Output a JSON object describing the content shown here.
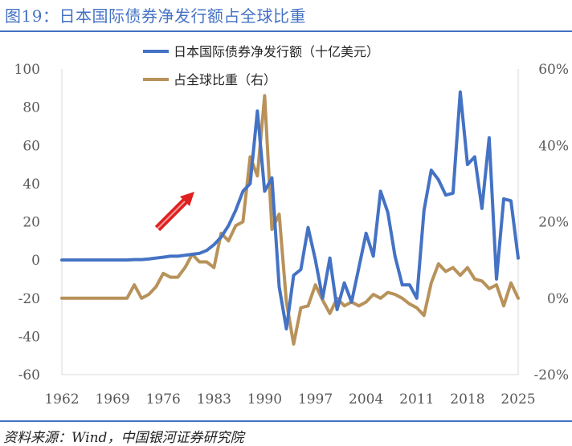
{
  "header": {
    "title": "图19：日本国际债券净发行额占全球比重"
  },
  "footer": {
    "source": "资料来源：Wind，中国银河证券研究院"
  },
  "colors": {
    "primary_series": "#4472c4",
    "secondary_series": "#b8925a",
    "arrow": "#e02020",
    "accent": "#4472c4"
  },
  "chart_data": {
    "type": "line",
    "title": "图19：日本国际债券净发行额占全球比重",
    "xticks": [
      "1962",
      "1969",
      "1976",
      "1983",
      "1990",
      "1997",
      "2004",
      "2011",
      "2018",
      "2025"
    ],
    "x_range": [
      1962,
      2025
    ],
    "y_left": {
      "range": [
        -60,
        100
      ],
      "ticks": [
        "100",
        "80",
        "60",
        "40",
        "20",
        "0",
        "-20",
        "-40",
        "-60"
      ]
    },
    "y_right": {
      "range": [
        -20,
        60
      ],
      "ticks": [
        "60%",
        "40%",
        "20%",
        "0%",
        "-20%"
      ]
    },
    "legend_position": "top",
    "grid": false,
    "annotation": "red-arrow-up",
    "series": [
      {
        "name": "日本国际债券净发行额（十亿美元）",
        "axis": "left",
        "points": [
          [
            1962,
            0
          ],
          [
            1963,
            0
          ],
          [
            1964,
            0
          ],
          [
            1965,
            0
          ],
          [
            1966,
            0
          ],
          [
            1967,
            0
          ],
          [
            1968,
            0
          ],
          [
            1969,
            0
          ],
          [
            1970,
            0
          ],
          [
            1971,
            0
          ],
          [
            1972,
            0.2
          ],
          [
            1973,
            0.2
          ],
          [
            1974,
            0.5
          ],
          [
            1975,
            1
          ],
          [
            1976,
            1.5
          ],
          [
            1977,
            2
          ],
          [
            1978,
            2
          ],
          [
            1979,
            2.5
          ],
          [
            1980,
            3
          ],
          [
            1981,
            3.5
          ],
          [
            1982,
            5
          ],
          [
            1983,
            8
          ],
          [
            1984,
            12
          ],
          [
            1985,
            18
          ],
          [
            1986,
            26
          ],
          [
            1987,
            36
          ],
          [
            1988,
            40
          ],
          [
            1989,
            78
          ],
          [
            1990,
            36
          ],
          [
            1991,
            43
          ],
          [
            1992,
            -14
          ],
          [
            1993,
            -36
          ],
          [
            1994,
            -8
          ],
          [
            1995,
            -5
          ],
          [
            1996,
            17
          ],
          [
            1997,
            0
          ],
          [
            1998,
            -20
          ],
          [
            1999,
            1
          ],
          [
            2000,
            -26
          ],
          [
            2001,
            -12
          ],
          [
            2002,
            -22
          ],
          [
            2003,
            -4
          ],
          [
            2004,
            14
          ],
          [
            2005,
            2
          ],
          [
            2006,
            36
          ],
          [
            2007,
            25
          ],
          [
            2008,
            2
          ],
          [
            2009,
            -13
          ],
          [
            2010,
            -13
          ],
          [
            2011,
            -20
          ],
          [
            2012,
            26
          ],
          [
            2013,
            47
          ],
          [
            2014,
            42
          ],
          [
            2015,
            34
          ],
          [
            2016,
            35
          ],
          [
            2017,
            88
          ],
          [
            2018,
            50
          ],
          [
            2019,
            54
          ],
          [
            2020,
            27
          ],
          [
            2021,
            64
          ],
          [
            2022,
            -10
          ],
          [
            2023,
            32
          ],
          [
            2024,
            31
          ],
          [
            2025,
            1
          ]
        ]
      },
      {
        "name": "占全球比重（右）",
        "axis": "right",
        "points": [
          [
            1962,
            0
          ],
          [
            1963,
            0
          ],
          [
            1964,
            0
          ],
          [
            1965,
            0
          ],
          [
            1966,
            0
          ],
          [
            1967,
            0
          ],
          [
            1968,
            0
          ],
          [
            1969,
            0
          ],
          [
            1970,
            0
          ],
          [
            1971,
            0
          ],
          [
            1972,
            3.5
          ],
          [
            1973,
            0
          ],
          [
            1974,
            1
          ],
          [
            1975,
            3
          ],
          [
            1976,
            6.5
          ],
          [
            1977,
            5.5
          ],
          [
            1978,
            5.5
          ],
          [
            1979,
            8
          ],
          [
            1980,
            11.5
          ],
          [
            1981,
            9.5
          ],
          [
            1982,
            9.5
          ],
          [
            1983,
            8
          ],
          [
            1984,
            17
          ],
          [
            1985,
            15
          ],
          [
            1986,
            19
          ],
          [
            1987,
            20
          ],
          [
            1988,
            37
          ],
          [
            1989,
            32
          ],
          [
            1990,
            53
          ],
          [
            1991,
            18
          ],
          [
            1992,
            22
          ],
          [
            1993,
            -1
          ],
          [
            1994,
            -12
          ],
          [
            1995,
            -2.5
          ],
          [
            1996,
            -2
          ],
          [
            1997,
            3.5
          ],
          [
            1998,
            -0.5
          ],
          [
            1999,
            -4
          ],
          [
            2000,
            0
          ],
          [
            2001,
            -2
          ],
          [
            2002,
            -1
          ],
          [
            2003,
            -2
          ],
          [
            2004,
            -1
          ],
          [
            2005,
            1
          ],
          [
            2006,
            0
          ],
          [
            2007,
            1.5
          ],
          [
            2008,
            1
          ],
          [
            2009,
            0
          ],
          [
            2010,
            -1.5
          ],
          [
            2011,
            -2.5
          ],
          [
            2012,
            -4.5
          ],
          [
            2013,
            4
          ],
          [
            2014,
            9
          ],
          [
            2015,
            7
          ],
          [
            2016,
            8
          ],
          [
            2017,
            6
          ],
          [
            2018,
            8
          ],
          [
            2019,
            5
          ],
          [
            2020,
            4.5
          ],
          [
            2021,
            2.5
          ],
          [
            2022,
            3.5
          ],
          [
            2023,
            -2
          ],
          [
            2024,
            4
          ],
          [
            2025,
            0
          ]
        ]
      }
    ]
  }
}
